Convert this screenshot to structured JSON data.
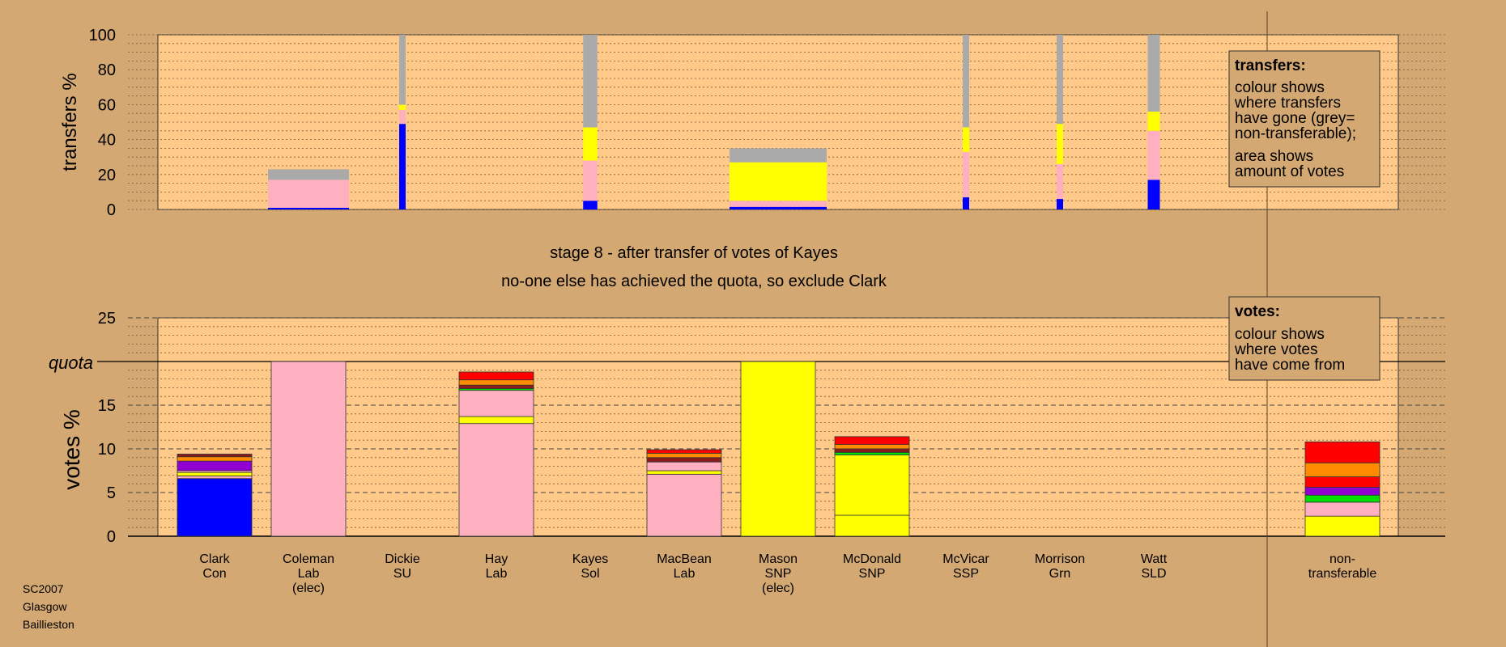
{
  "colors": {
    "background": "#d4a872",
    "plot_bg": "#ffc98a",
    "blue": "#0000ff",
    "pink": "#ffb0c0",
    "yellow": "#ffff00",
    "grey": "#aaaaaa",
    "orange": "#ff8c00",
    "red": "#ff0000",
    "purple": "#9000d0",
    "green": "#00e000",
    "darkred": "#8b1a1a",
    "olive": "#8b8b00"
  },
  "title": {
    "line1": "stage 8 - after transfer of votes of Kayes",
    "line2": "no-one else has achieved the quota, so exclude Clark"
  },
  "footer": {
    "line1": "SC2007",
    "line2": "Glasgow",
    "line3": "Baillieston"
  },
  "transfers_legend": {
    "title": "transfers:",
    "lines": [
      "colour shows",
      "where transfers",
      "have gone (grey=",
      "non-transferable);",
      "area shows",
      "amount of votes"
    ]
  },
  "votes_legend": {
    "title": "votes:",
    "lines": [
      "colour shows",
      "where votes",
      "have come from"
    ]
  },
  "chart_data": [
    {
      "type": "bar",
      "name_key": "transfers",
      "ylabel": "transfers %",
      "ylim": [
        0,
        100
      ],
      "yticks": [
        0,
        20,
        40,
        60,
        80,
        100
      ],
      "grid": true,
      "bars": [
        {
          "candidate": "Coleman",
          "width_share": 0.2,
          "stack": [
            {
              "color": "blue",
              "v": 1
            },
            {
              "color": "pink",
              "v": 16
            },
            {
              "color": "grey",
              "v": 6
            }
          ]
        },
        {
          "candidate": "Dickie",
          "width_share": 0.015,
          "stack": [
            {
              "color": "blue",
              "v": 49
            },
            {
              "color": "pink",
              "v": 8
            },
            {
              "color": "yellow",
              "v": 3
            },
            {
              "color": "grey",
              "v": 40
            }
          ]
        },
        {
          "candidate": "Kayes",
          "width_share": 0.035,
          "stack": [
            {
              "color": "blue",
              "v": 5
            },
            {
              "color": "pink",
              "v": 23
            },
            {
              "color": "yellow",
              "v": 19
            },
            {
              "color": "grey",
              "v": 53
            }
          ]
        },
        {
          "candidate": "Mason",
          "width_share": 0.24,
          "stack": [
            {
              "color": "blue",
              "v": 1.5
            },
            {
              "color": "pink",
              "v": 3.5
            },
            {
              "color": "yellow",
              "v": 22
            },
            {
              "color": "grey",
              "v": 8
            }
          ]
        },
        {
          "candidate": "McVicar",
          "width_share": 0.015,
          "stack": [
            {
              "color": "blue",
              "v": 7
            },
            {
              "color": "pink",
              "v": 26
            },
            {
              "color": "yellow",
              "v": 14
            },
            {
              "color": "grey",
              "v": 53
            }
          ]
        },
        {
          "candidate": "Morrison",
          "width_share": 0.013,
          "stack": [
            {
              "color": "blue",
              "v": 6
            },
            {
              "color": "pink",
              "v": 20
            },
            {
              "color": "yellow",
              "v": 23
            },
            {
              "color": "grey",
              "v": 51
            }
          ]
        },
        {
          "candidate": "Watt",
          "width_share": 0.03,
          "stack": [
            {
              "color": "blue",
              "v": 17
            },
            {
              "color": "pink",
              "v": 28
            },
            {
              "color": "yellow",
              "v": 11
            },
            {
              "color": "grey",
              "v": 44
            }
          ]
        }
      ]
    },
    {
      "type": "bar",
      "name_key": "votes",
      "ylabel": "votes %",
      "ylim": [
        0,
        25
      ],
      "yticks": [
        0,
        5,
        10,
        15,
        20,
        25
      ],
      "quota": 20,
      "quota_label": "quota",
      "grid": true,
      "categories": [
        {
          "line1": "Clark",
          "line2": "Con",
          "line3": ""
        },
        {
          "line1": "Coleman",
          "line2": "Lab",
          "line3": "(elec)"
        },
        {
          "line1": "Dickie",
          "line2": "SU",
          "line3": ""
        },
        {
          "line1": "Hay",
          "line2": "Lab",
          "line3": ""
        },
        {
          "line1": "Kayes",
          "line2": "Sol",
          "line3": ""
        },
        {
          "line1": "MacBean",
          "line2": "Lab",
          "line3": ""
        },
        {
          "line1": "Mason",
          "line2": "SNP",
          "line3": "(elec)"
        },
        {
          "line1": "McDonald",
          "line2": "SNP",
          "line3": ""
        },
        {
          "line1": "McVicar",
          "line2": "SSP",
          "line3": ""
        },
        {
          "line1": "Morrison",
          "line2": "Grn",
          "line3": ""
        },
        {
          "line1": "Watt",
          "line2": "SLD",
          "line3": ""
        },
        {
          "line1": "non-",
          "line2": "transferable",
          "line3": ""
        }
      ],
      "stacks": [
        [
          {
            "color": "blue",
            "v": 6.6
          },
          {
            "color": "pink",
            "v": 0.3
          },
          {
            "color": "yellow",
            "v": 0.4
          },
          {
            "color": "pink",
            "v": 0.2
          },
          {
            "color": "purple",
            "v": 1.1
          },
          {
            "color": "orange",
            "v": 0.5
          },
          {
            "color": "darkred",
            "v": 0.3
          }
        ],
        [
          {
            "color": "pink",
            "v": 20
          }
        ],
        [],
        [
          {
            "color": "pink",
            "v": 12.9
          },
          {
            "color": "yellow",
            "v": 0.8
          },
          {
            "color": "pink",
            "v": 3.0
          },
          {
            "color": "green",
            "v": 0.2
          },
          {
            "color": "darkred",
            "v": 0.4
          },
          {
            "color": "orange",
            "v": 0.6
          },
          {
            "color": "red",
            "v": 0.9
          }
        ],
        [],
        [
          {
            "color": "pink",
            "v": 7.1
          },
          {
            "color": "yellow",
            "v": 0.4
          },
          {
            "color": "pink",
            "v": 1.0
          },
          {
            "color": "darkred",
            "v": 0.5
          },
          {
            "color": "orange",
            "v": 0.5
          },
          {
            "color": "red",
            "v": 0.4
          }
        ],
        [
          {
            "color": "yellow",
            "v": 20
          }
        ],
        [
          {
            "color": "yellow",
            "v": 2.4
          },
          {
            "color": "yellow",
            "v": 6.9
          },
          {
            "color": "green",
            "v": 0.3
          },
          {
            "color": "darkred",
            "v": 0.4
          },
          {
            "color": "orange",
            "v": 0.5
          },
          {
            "color": "red",
            "v": 0.9
          }
        ],
        [],
        [],
        [],
        [
          {
            "color": "yellow",
            "v": 2.3
          },
          {
            "color": "pink",
            "v": 1.6
          },
          {
            "color": "green",
            "v": 0.8
          },
          {
            "color": "purple",
            "v": 0.9
          },
          {
            "color": "red",
            "v": 1.2
          },
          {
            "color": "orange",
            "v": 1.6
          },
          {
            "color": "red",
            "v": 2.4
          }
        ]
      ]
    }
  ]
}
